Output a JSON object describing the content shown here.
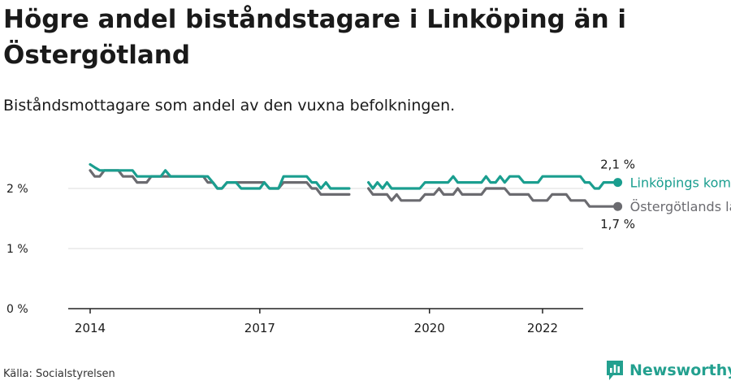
{
  "title": "Högre andel biståndstagare i Linköping än i Östergötland",
  "subtitle": "Biståndsmottagare som andel av den vuxna befolkningen.",
  "source": "Källa: Socialstyrelsen",
  "brand": {
    "name": "Newsworthy",
    "icon": "newsworthy-bar-chart-icon"
  },
  "colors": {
    "linkoping": "#1a9e8f",
    "ostergotland": "#6b6b70",
    "axis": "#222222",
    "grid": "#dddddd"
  },
  "chart_data": {
    "type": "line",
    "xlim": [
      2014,
      2022.6
    ],
    "ylim": [
      0,
      2.5
    ],
    "yticks": [
      0,
      1,
      2
    ],
    "ytick_labels": [
      "0 %",
      "1 %",
      "2 %"
    ],
    "xticks": [
      2014,
      2017,
      2020,
      2022
    ],
    "xtick_labels": [
      "2014",
      "2017",
      "2020",
      "2022"
    ],
    "grid": true,
    "legend": "end-of-line labels",
    "series": [
      {
        "name": "Linköpings kommun",
        "end_label": "2,1 %",
        "segments": [
          [
            [
              2014.0,
              2.4
            ],
            [
              2014.08,
              2.35
            ],
            [
              2014.17,
              2.3
            ],
            [
              2014.25,
              2.3
            ],
            [
              2014.33,
              2.3
            ],
            [
              2014.42,
              2.3
            ],
            [
              2014.5,
              2.3
            ],
            [
              2014.58,
              2.3
            ],
            [
              2014.67,
              2.3
            ],
            [
              2014.75,
              2.3
            ],
            [
              2014.83,
              2.2
            ],
            [
              2014.92,
              2.2
            ],
            [
              2015.0,
              2.2
            ],
            [
              2015.08,
              2.2
            ],
            [
              2015.17,
              2.2
            ],
            [
              2015.25,
              2.2
            ],
            [
              2015.33,
              2.3
            ],
            [
              2015.42,
              2.2
            ],
            [
              2015.5,
              2.2
            ],
            [
              2015.58,
              2.2
            ],
            [
              2015.67,
              2.2
            ],
            [
              2015.75,
              2.2
            ],
            [
              2015.83,
              2.2
            ],
            [
              2015.92,
              2.2
            ],
            [
              2016.0,
              2.2
            ],
            [
              2016.08,
              2.2
            ],
            [
              2016.17,
              2.1
            ],
            [
              2016.25,
              2.0
            ],
            [
              2016.33,
              2.0
            ],
            [
              2016.42,
              2.1
            ],
            [
              2016.5,
              2.1
            ],
            [
              2016.58,
              2.1
            ],
            [
              2016.67,
              2.0
            ],
            [
              2016.75,
              2.0
            ],
            [
              2016.83,
              2.0
            ],
            [
              2016.92,
              2.0
            ],
            [
              2017.0,
              2.0
            ],
            [
              2017.08,
              2.1
            ],
            [
              2017.17,
              2.0
            ],
            [
              2017.25,
              2.0
            ],
            [
              2017.33,
              2.0
            ],
            [
              2017.42,
              2.2
            ],
            [
              2017.5,
              2.2
            ],
            [
              2017.58,
              2.2
            ],
            [
              2017.67,
              2.2
            ],
            [
              2017.75,
              2.2
            ],
            [
              2017.83,
              2.2
            ],
            [
              2017.92,
              2.1
            ],
            [
              2018.0,
              2.1
            ],
            [
              2018.08,
              2.0
            ],
            [
              2018.17,
              2.1
            ],
            [
              2018.25,
              2.0
            ],
            [
              2018.33,
              2.0
            ],
            [
              2018.42,
              2.0
            ],
            [
              2018.5,
              2.0
            ],
            [
              2018.58,
              2.0
            ]
          ],
          [
            [
              2018.92,
              2.1
            ],
            [
              2019.0,
              2.0
            ],
            [
              2019.08,
              2.1
            ],
            [
              2019.17,
              2.0
            ],
            [
              2019.25,
              2.1
            ],
            [
              2019.33,
              2.0
            ],
            [
              2019.42,
              2.0
            ],
            [
              2019.5,
              2.0
            ],
            [
              2019.58,
              2.0
            ],
            [
              2019.67,
              2.0
            ],
            [
              2019.75,
              2.0
            ],
            [
              2019.83,
              2.0
            ],
            [
              2019.92,
              2.1
            ],
            [
              2020.0,
              2.1
            ],
            [
              2020.08,
              2.1
            ],
            [
              2020.17,
              2.1
            ],
            [
              2020.25,
              2.1
            ],
            [
              2020.33,
              2.1
            ],
            [
              2020.42,
              2.2
            ],
            [
              2020.5,
              2.1
            ],
            [
              2020.58,
              2.1
            ],
            [
              2020.67,
              2.1
            ],
            [
              2020.75,
              2.1
            ],
            [
              2020.83,
              2.1
            ],
            [
              2020.92,
              2.1
            ],
            [
              2021.0,
              2.2
            ],
            [
              2021.08,
              2.1
            ],
            [
              2021.17,
              2.1
            ],
            [
              2021.25,
              2.2
            ],
            [
              2021.33,
              2.1
            ],
            [
              2021.42,
              2.2
            ],
            [
              2021.5,
              2.2
            ],
            [
              2021.58,
              2.2
            ],
            [
              2021.67,
              2.1
            ],
            [
              2021.75,
              2.1
            ],
            [
              2021.83,
              2.1
            ],
            [
              2021.92,
              2.1
            ],
            [
              2022.0,
              2.2
            ],
            [
              2022.08,
              2.2
            ],
            [
              2022.17,
              2.2
            ],
            [
              2022.25,
              2.2
            ],
            [
              2022.33,
              2.2
            ],
            [
              2022.42,
              2.2
            ],
            [
              2022.5,
              2.2
            ],
            [
              2022.58,
              2.2
            ],
            [
              2022.67,
              2.2
            ],
            [
              2022.75,
              2.1
            ],
            [
              2022.83,
              2.1
            ],
            [
              2022.92,
              2.0
            ],
            [
              2023.0,
              2.0
            ],
            [
              2023.08,
              2.1
            ],
            [
              2023.17,
              2.1
            ],
            [
              2023.25,
              2.1
            ],
            [
              2023.33,
              2.1
            ]
          ]
        ]
      },
      {
        "name": "Östergötlands län",
        "end_label": "1,7 %",
        "segments": [
          [
            [
              2014.0,
              2.3
            ],
            [
              2014.08,
              2.2
            ],
            [
              2014.17,
              2.2
            ],
            [
              2014.25,
              2.3
            ],
            [
              2014.33,
              2.3
            ],
            [
              2014.42,
              2.3
            ],
            [
              2014.5,
              2.3
            ],
            [
              2014.58,
              2.2
            ],
            [
              2014.67,
              2.2
            ],
            [
              2014.75,
              2.2
            ],
            [
              2014.83,
              2.1
            ],
            [
              2014.92,
              2.1
            ],
            [
              2015.0,
              2.1
            ],
            [
              2015.08,
              2.2
            ],
            [
              2015.17,
              2.2
            ],
            [
              2015.25,
              2.2
            ],
            [
              2015.33,
              2.2
            ],
            [
              2015.42,
              2.2
            ],
            [
              2015.5,
              2.2
            ],
            [
              2015.58,
              2.2
            ],
            [
              2015.67,
              2.2
            ],
            [
              2015.75,
              2.2
            ],
            [
              2015.83,
              2.2
            ],
            [
              2015.92,
              2.2
            ],
            [
              2016.0,
              2.2
            ],
            [
              2016.08,
              2.1
            ],
            [
              2016.17,
              2.1
            ],
            [
              2016.25,
              2.0
            ],
            [
              2016.33,
              2.0
            ],
            [
              2016.42,
              2.1
            ],
            [
              2016.5,
              2.1
            ],
            [
              2016.58,
              2.1
            ],
            [
              2016.67,
              2.1
            ],
            [
              2016.75,
              2.1
            ],
            [
              2016.83,
              2.1
            ],
            [
              2016.92,
              2.1
            ],
            [
              2017.0,
              2.1
            ],
            [
              2017.08,
              2.1
            ],
            [
              2017.17,
              2.0
            ],
            [
              2017.25,
              2.0
            ],
            [
              2017.33,
              2.0
            ],
            [
              2017.42,
              2.1
            ],
            [
              2017.5,
              2.1
            ],
            [
              2017.58,
              2.1
            ],
            [
              2017.67,
              2.1
            ],
            [
              2017.75,
              2.1
            ],
            [
              2017.83,
              2.1
            ],
            [
              2017.92,
              2.0
            ],
            [
              2018.0,
              2.0
            ],
            [
              2018.08,
              1.9
            ],
            [
              2018.17,
              1.9
            ],
            [
              2018.25,
              1.9
            ],
            [
              2018.33,
              1.9
            ],
            [
              2018.42,
              1.9
            ],
            [
              2018.5,
              1.9
            ],
            [
              2018.58,
              1.9
            ]
          ],
          [
            [
              2018.92,
              2.0
            ],
            [
              2019.0,
              1.9
            ],
            [
              2019.08,
              1.9
            ],
            [
              2019.17,
              1.9
            ],
            [
              2019.25,
              1.9
            ],
            [
              2019.33,
              1.8
            ],
            [
              2019.42,
              1.9
            ],
            [
              2019.5,
              1.8
            ],
            [
              2019.58,
              1.8
            ],
            [
              2019.67,
              1.8
            ],
            [
              2019.75,
              1.8
            ],
            [
              2019.83,
              1.8
            ],
            [
              2019.92,
              1.9
            ],
            [
              2020.0,
              1.9
            ],
            [
              2020.08,
              1.9
            ],
            [
              2020.17,
              2.0
            ],
            [
              2020.25,
              1.9
            ],
            [
              2020.33,
              1.9
            ],
            [
              2020.42,
              1.9
            ],
            [
              2020.5,
              2.0
            ],
            [
              2020.58,
              1.9
            ],
            [
              2020.67,
              1.9
            ],
            [
              2020.75,
              1.9
            ],
            [
              2020.83,
              1.9
            ],
            [
              2020.92,
              1.9
            ],
            [
              2021.0,
              2.0
            ],
            [
              2021.08,
              2.0
            ],
            [
              2021.17,
              2.0
            ],
            [
              2021.25,
              2.0
            ],
            [
              2021.33,
              2.0
            ],
            [
              2021.42,
              1.9
            ],
            [
              2021.5,
              1.9
            ],
            [
              2021.58,
              1.9
            ],
            [
              2021.67,
              1.9
            ],
            [
              2021.75,
              1.9
            ],
            [
              2021.83,
              1.8
            ],
            [
              2021.92,
              1.8
            ],
            [
              2022.0,
              1.8
            ],
            [
              2022.08,
              1.8
            ],
            [
              2022.17,
              1.9
            ],
            [
              2022.25,
              1.9
            ],
            [
              2022.33,
              1.9
            ],
            [
              2022.42,
              1.9
            ],
            [
              2022.5,
              1.8
            ],
            [
              2022.58,
              1.8
            ],
            [
              2022.67,
              1.8
            ],
            [
              2022.75,
              1.8
            ],
            [
              2022.83,
              1.7
            ],
            [
              2022.92,
              1.7
            ],
            [
              2023.0,
              1.7
            ],
            [
              2023.08,
              1.7
            ],
            [
              2023.17,
              1.7
            ],
            [
              2023.25,
              1.7
            ],
            [
              2023.33,
              1.7
            ]
          ]
        ]
      }
    ]
  }
}
